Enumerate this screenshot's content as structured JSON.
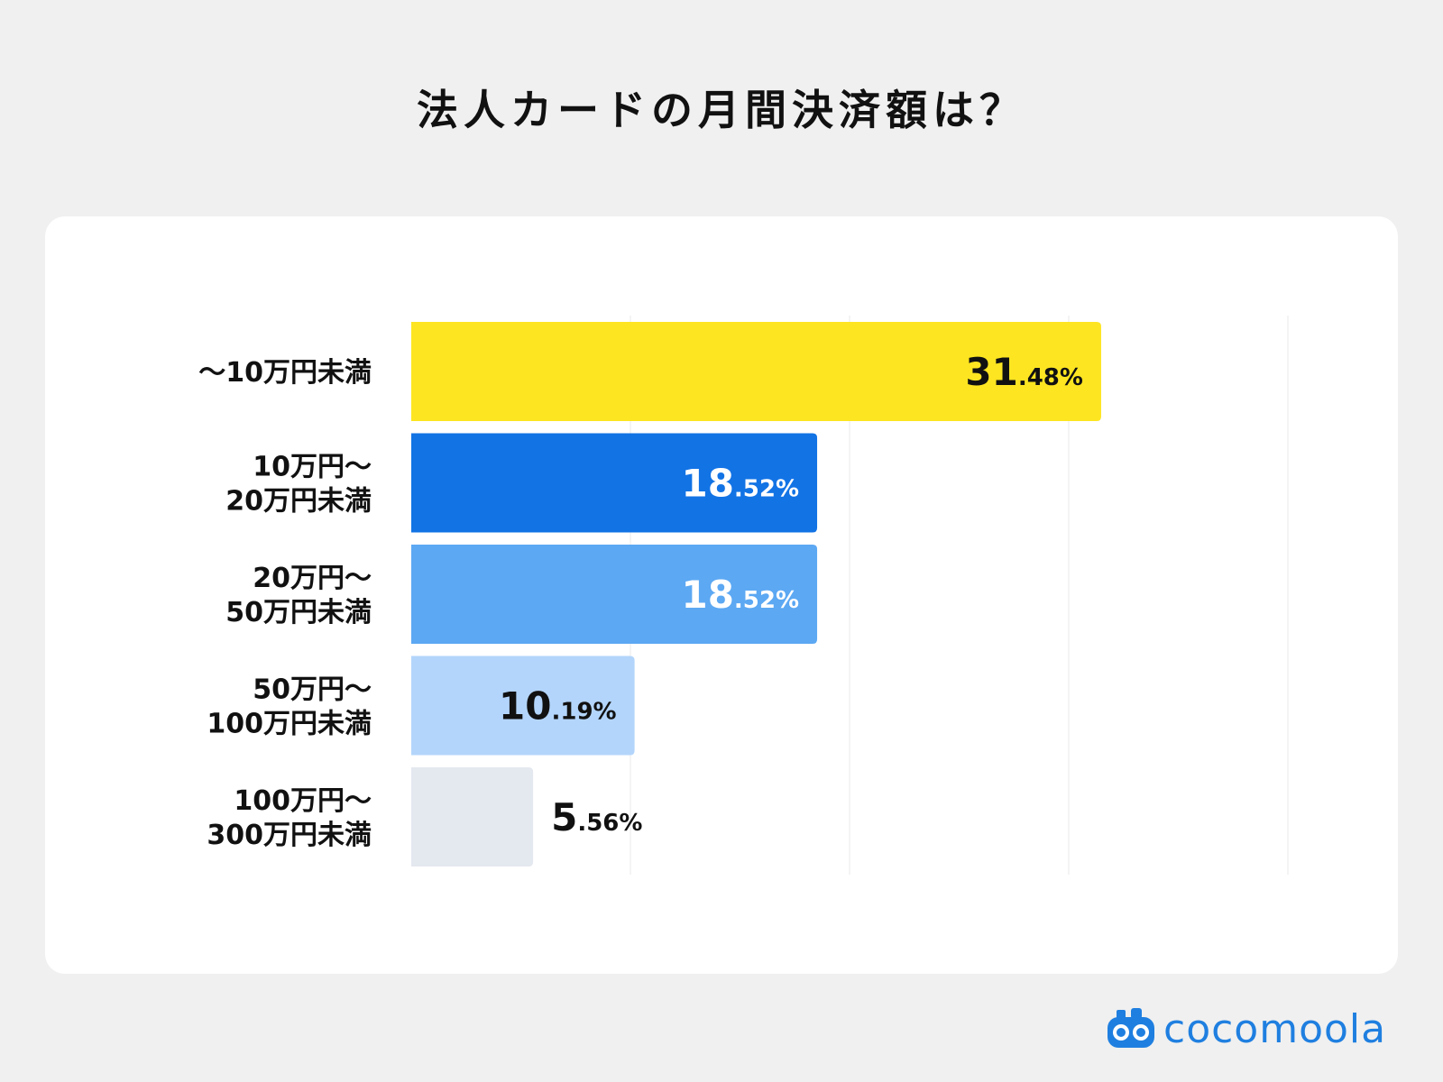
{
  "title": "法人カードの月間決済額は？",
  "brand": {
    "name": "cocomoola",
    "color": "#1f7fe0",
    "icon": "robot-face-icon"
  },
  "chart_data": {
    "type": "bar",
    "orientation": "horizontal",
    "title": "法人カードの月間決済額は？",
    "xlabel": "",
    "ylabel": "",
    "xlim": [
      0,
      50
    ],
    "grid": true,
    "categories": [
      [
        "〜10万円未満"
      ],
      [
        "10万円〜",
        "20万円未満"
      ],
      [
        "20万円〜",
        "50万円未満"
      ],
      [
        "50万円〜",
        "100万円未満"
      ],
      [
        "100万円〜",
        "300万円未満"
      ]
    ],
    "values": [
      31.48,
      18.52,
      18.52,
      10.19,
      5.56
    ],
    "labels": [
      {
        "int": "31",
        "dec": ".48%"
      },
      {
        "int": "18",
        "dec": ".52%"
      },
      {
        "int": "18",
        "dec": ".52%"
      },
      {
        "int": "10",
        "dec": ".19%"
      },
      {
        "int": "5",
        "dec": ".56%"
      }
    ],
    "colors": [
      "#fde521",
      "#1273e5",
      "#5ca8f3",
      "#b3d5fb",
      "#e4e8ef"
    ],
    "label_colors": [
      "#111111",
      "#ffffff",
      "#ffffff",
      "#111111",
      "#111111"
    ],
    "label_inside": [
      true,
      true,
      true,
      true,
      false
    ]
  }
}
